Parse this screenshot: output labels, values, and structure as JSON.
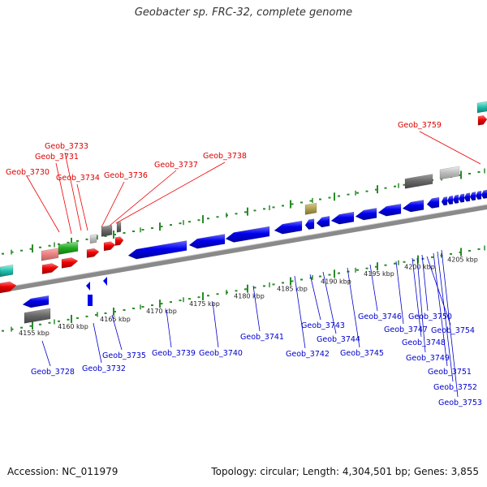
{
  "title": "Geobacter sp. FRC-32, complete genome",
  "footer": {
    "accession": "Accession: NC_011979",
    "summary": "Topology: circular; Length: 4,304,501 bp; Genes: 3,855"
  },
  "colors": {
    "forward_gene": "#ee0000",
    "reverse_gene": "#0000ee",
    "axis": "#808080",
    "tick": "#2a8a2a"
  },
  "ticks": [
    {
      "label": "4155 kbp"
    },
    {
      "label": "4160 kbp"
    },
    {
      "label": "4165 kbp"
    },
    {
      "label": "4170 kbp"
    },
    {
      "label": "4175 kbp"
    },
    {
      "label": "4180 kbp"
    },
    {
      "label": "4185 kbp"
    },
    {
      "label": "4190 kbp"
    },
    {
      "label": "4195 kbp"
    },
    {
      "label": "4200 kbp"
    },
    {
      "label": "4205 kbp"
    }
  ],
  "forward_labels": [
    {
      "label": "Geob_3730"
    },
    {
      "label": "Geob_3731"
    },
    {
      "label": "Geob_3733"
    },
    {
      "label": "Geob_3734"
    },
    {
      "label": "Geob_3736"
    },
    {
      "label": "Geob_3737"
    },
    {
      "label": "Geob_3738"
    },
    {
      "label": "Geob_3759"
    }
  ],
  "reverse_labels": [
    {
      "label": "Geob_3728"
    },
    {
      "label": "Geob_3732"
    },
    {
      "label": "Geob_3735"
    },
    {
      "label": "Geob_3739"
    },
    {
      "label": "Geob_3740"
    },
    {
      "label": "Geob_3741"
    },
    {
      "label": "Geob_3742"
    },
    {
      "label": "Geob_3743"
    },
    {
      "label": "Geob_3744"
    },
    {
      "label": "Geob_3745"
    },
    {
      "label": "Geob_3746"
    },
    {
      "label": "Geob_3747"
    },
    {
      "label": "Geob_3748"
    },
    {
      "label": "Geob_3749"
    },
    {
      "label": "Geob_3750"
    },
    {
      "label": "Geob_3751"
    },
    {
      "label": "Geob_3752"
    },
    {
      "label": "Geob_3753"
    },
    {
      "label": "Geob_3754"
    }
  ]
}
